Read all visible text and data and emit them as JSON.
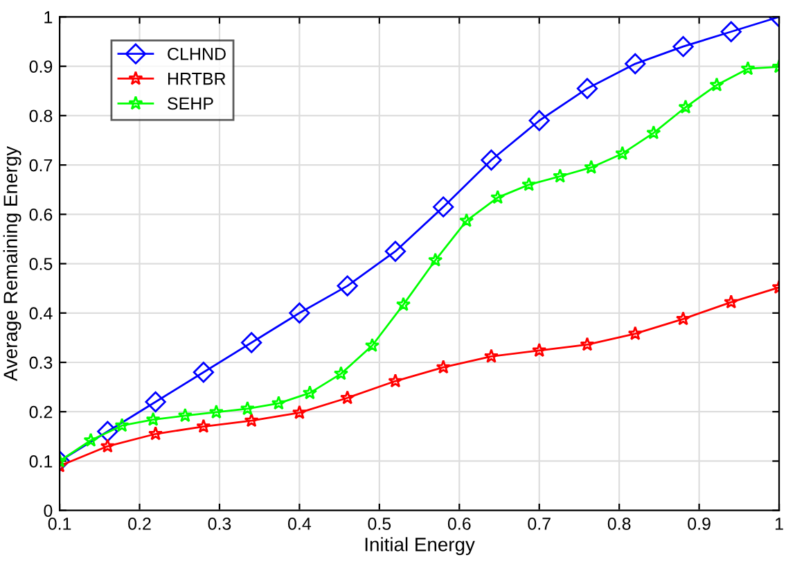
{
  "chart_data": {
    "type": "line",
    "xlabel": "Initial Energy",
    "ylabel": "Average Remaining Energy",
    "xlim": [
      0.1,
      1
    ],
    "xticks": [
      0.1,
      0.2,
      0.3,
      0.4,
      0.5,
      0.6,
      0.7,
      0.8,
      0.9,
      1
    ],
    "ylim": [
      0,
      1
    ],
    "yticks": [
      0,
      0.1,
      0.2,
      0.3,
      0.4,
      0.5,
      0.6,
      0.7,
      0.8,
      0.9,
      1
    ],
    "grid": true,
    "legend": "top left",
    "series": [
      {
        "name": "CLHND",
        "color": "#0000ff",
        "marker": "diamond",
        "x": [
          0.1,
          0.16,
          0.22,
          0.28,
          0.34,
          0.4,
          0.46,
          0.52,
          0.58,
          0.64,
          0.7,
          0.76,
          0.82,
          0.88,
          0.94,
          1.0
        ],
        "values": [
          0.1,
          0.16,
          0.22,
          0.28,
          0.34,
          0.4,
          0.455,
          0.525,
          0.615,
          0.71,
          0.79,
          0.855,
          0.905,
          0.94,
          0.97,
          1.0
        ]
      },
      {
        "name": "HRTBR",
        "color": "#ff0000",
        "marker": "star",
        "x": [
          0.1,
          0.16,
          0.22,
          0.28,
          0.34,
          0.4,
          0.46,
          0.52,
          0.58,
          0.64,
          0.7,
          0.76,
          0.82,
          0.88,
          0.94,
          1.0
        ],
        "values": [
          0.09,
          0.13,
          0.155,
          0.17,
          0.182,
          0.198,
          0.228,
          0.262,
          0.29,
          0.312,
          0.324,
          0.336,
          0.358,
          0.388,
          0.422,
          0.452
        ]
      },
      {
        "name": "SEHP",
        "color": "#00ff00",
        "marker": "star",
        "x": [
          0.1,
          0.139,
          0.178,
          0.217,
          0.257,
          0.296,
          0.335,
          0.374,
          0.413,
          0.452,
          0.491,
          0.53,
          0.57,
          0.609,
          0.648,
          0.687,
          0.726,
          0.765,
          0.804,
          0.843,
          0.883,
          0.922,
          0.961,
          1.0
        ],
        "values": [
          0.1,
          0.142,
          0.172,
          0.184,
          0.192,
          0.199,
          0.206,
          0.217,
          0.238,
          0.277,
          0.334,
          0.417,
          0.507,
          0.587,
          0.634,
          0.66,
          0.677,
          0.695,
          0.723,
          0.765,
          0.817,
          0.862,
          0.895,
          0.899
        ]
      }
    ]
  }
}
